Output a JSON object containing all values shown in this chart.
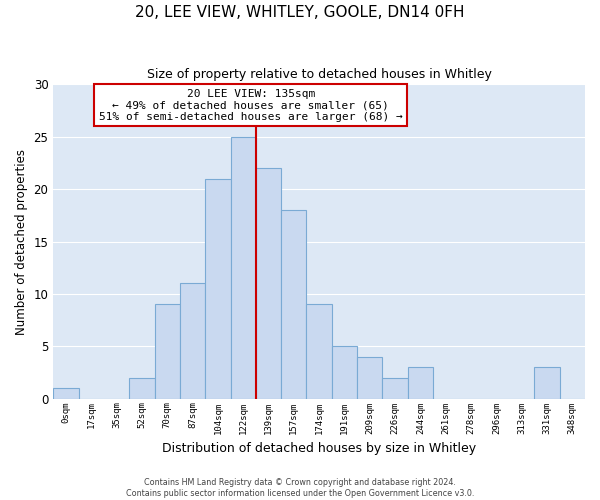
{
  "title": "20, LEE VIEW, WHITLEY, GOOLE, DN14 0FH",
  "subtitle": "Size of property relative to detached houses in Whitley",
  "xlabel": "Distribution of detached houses by size in Whitley",
  "ylabel": "Number of detached properties",
  "footer_line1": "Contains HM Land Registry data © Crown copyright and database right 2024.",
  "footer_line2": "Contains public sector information licensed under the Open Government Licence v3.0.",
  "bin_labels": [
    "0sqm",
    "17sqm",
    "35sqm",
    "52sqm",
    "70sqm",
    "87sqm",
    "104sqm",
    "122sqm",
    "139sqm",
    "157sqm",
    "174sqm",
    "191sqm",
    "209sqm",
    "226sqm",
    "244sqm",
    "261sqm",
    "278sqm",
    "296sqm",
    "313sqm",
    "331sqm",
    "348sqm"
  ],
  "bar_heights": [
    1,
    0,
    0,
    2,
    9,
    11,
    21,
    25,
    22,
    18,
    9,
    5,
    4,
    2,
    3,
    0,
    0,
    0,
    0,
    3,
    0
  ],
  "bar_color": "#c9d9f0",
  "bar_edge_color": "#7aaad4",
  "vline_x": 8.0,
  "vline_color": "#cc0000",
  "annotation_title": "20 LEE VIEW: 135sqm",
  "annotation_line2": "← 49% of detached houses are smaller (65)",
  "annotation_line3": "51% of semi-detached houses are larger (68) →",
  "annotation_box_color": "#ffffff",
  "annotation_box_edge_color": "#cc0000",
  "ylim": [
    0,
    30
  ],
  "yticks": [
    0,
    5,
    10,
    15,
    20,
    25,
    30
  ],
  "plot_bg_color": "#dde8f5",
  "background_color": "#ffffff",
  "grid_color": "#ffffff"
}
